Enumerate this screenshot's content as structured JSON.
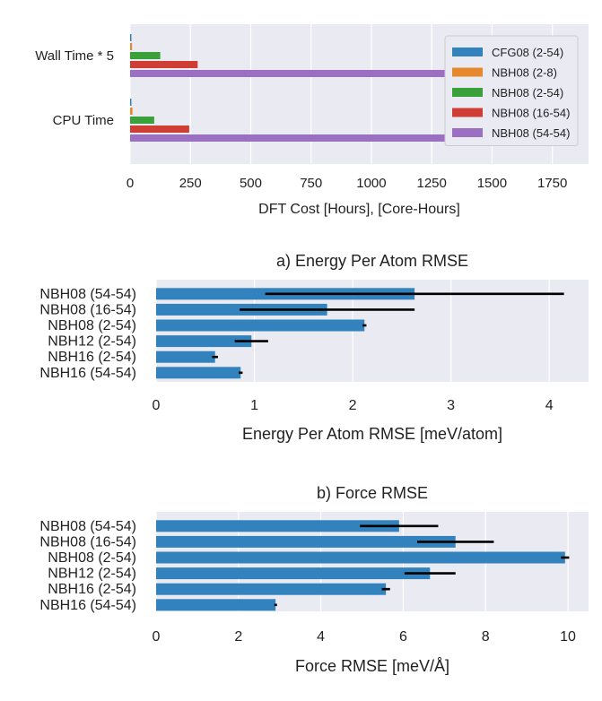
{
  "colors": {
    "plot_bg": "#eaeaf2",
    "grid": "#ffffff",
    "blue": "#3182bd",
    "orange": "#e6892e",
    "green": "#3aa13a",
    "red": "#cf3d35",
    "purple": "#9b6fc2",
    "error_bar": "#000000",
    "text": "#222222"
  },
  "chart_data": [
    {
      "type": "bar",
      "orientation": "horizontal",
      "title": "",
      "xlabel": "DFT Cost [Hours], [Core-Hours]",
      "ylabel": "",
      "categories": [
        "Wall Time * 5",
        "CPU Time"
      ],
      "xlim": [
        0,
        1900
      ],
      "xticks": [
        "0",
        "250",
        "500",
        "750",
        "1000",
        "1250",
        "1500",
        "1750"
      ],
      "grid": true,
      "legend_position": "upper right",
      "series": [
        {
          "name": "CFG08 (2-54)",
          "color": "#3182bd",
          "values": [
            5,
            3
          ]
        },
        {
          "name": "NBH08 (2-8)",
          "color": "#e6892e",
          "values": [
            8,
            10
          ]
        },
        {
          "name": "NBH08 (2-54)",
          "color": "#3aa13a",
          "values": [
            125,
            100
          ]
        },
        {
          "name": "NBH08 (16-54)",
          "color": "#cf3d35",
          "values": [
            280,
            245
          ]
        },
        {
          "name": "NBH08 (54-54)",
          "color": "#9b6fc2",
          "values": [
            1310,
            1850
          ]
        }
      ]
    },
    {
      "type": "bar",
      "orientation": "horizontal",
      "title": "a) Energy Per Atom RMSE",
      "xlabel": "Energy Per Atom RMSE [meV/atom]",
      "ylabel": "",
      "categories": [
        "NBH08 (54-54)",
        "NBH08 (16-54)",
        "NBH08 (2-54)",
        "NBH12 (2-54)",
        "NBH16 (2-54)",
        "NBH16 (54-54)"
      ],
      "values": [
        2.63,
        1.74,
        2.12,
        0.97,
        0.6,
        0.86
      ],
      "error": [
        1.52,
        0.89,
        0.02,
        0.17,
        0.03,
        0.02
      ],
      "xlim": [
        0,
        4.4
      ],
      "xticks": [
        "0",
        "1",
        "2",
        "3",
        "4"
      ],
      "grid": true,
      "color": "#3182bd"
    },
    {
      "type": "bar",
      "orientation": "horizontal",
      "title": "b) Force RMSE",
      "xlabel": "Force RMSE [meV/Å]",
      "ylabel": "",
      "categories": [
        "NBH08 (54-54)",
        "NBH08 (16-54)",
        "NBH08 (2-54)",
        "NBH12 (2-54)",
        "NBH16 (2-54)",
        "NBH16 (54-54)"
      ],
      "values": [
        5.9,
        7.27,
        9.93,
        6.65,
        5.58,
        2.9
      ],
      "error": [
        0.95,
        0.93,
        0.1,
        0.62,
        0.1,
        0.03
      ],
      "xlim": [
        0,
        10.5
      ],
      "xticks": [
        "0",
        "2",
        "4",
        "6",
        "8",
        "10"
      ],
      "grid": true,
      "color": "#3182bd"
    }
  ]
}
